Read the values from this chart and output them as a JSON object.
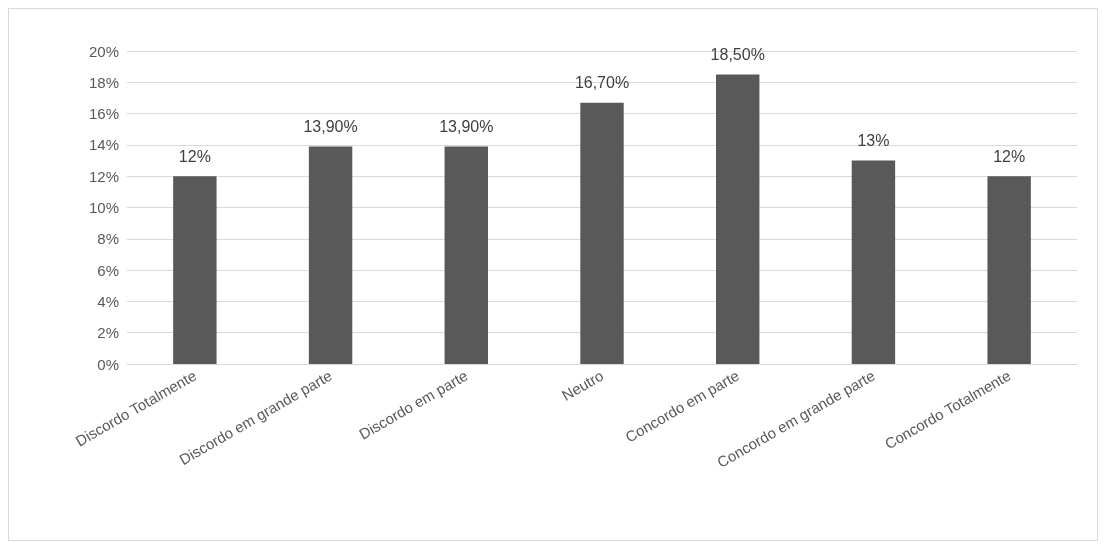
{
  "chart_data": {
    "type": "bar",
    "categories": [
      "Discordo Totalmente",
      "Discordo em grande parte",
      "Discordo em parte",
      "Neutro",
      "Concordo em parte",
      "Concordo em grande parte",
      "Concordo Totalmente"
    ],
    "values": [
      12,
      13.9,
      13.9,
      16.7,
      18.5,
      13,
      12
    ],
    "value_labels": [
      "12%",
      "13,90%",
      "13,90%",
      "16,70%",
      "18,50%",
      "13%",
      "12%"
    ],
    "color": "#595959",
    "ylim": [
      0,
      20
    ],
    "yticks": [
      {
        "value": 0,
        "label": "0%"
      },
      {
        "value": 2,
        "label": "2%"
      },
      {
        "value": 4,
        "label": "4%"
      },
      {
        "value": 6,
        "label": "6%"
      },
      {
        "value": 8,
        "label": "8%"
      },
      {
        "value": 10,
        "label": "10%"
      },
      {
        "value": 12,
        "label": "12%"
      },
      {
        "value": 14,
        "label": "14%"
      },
      {
        "value": 16,
        "label": "16%"
      },
      {
        "value": 18,
        "label": "18%"
      },
      {
        "value": 20,
        "label": "20%"
      }
    ],
    "grid": "y"
  }
}
